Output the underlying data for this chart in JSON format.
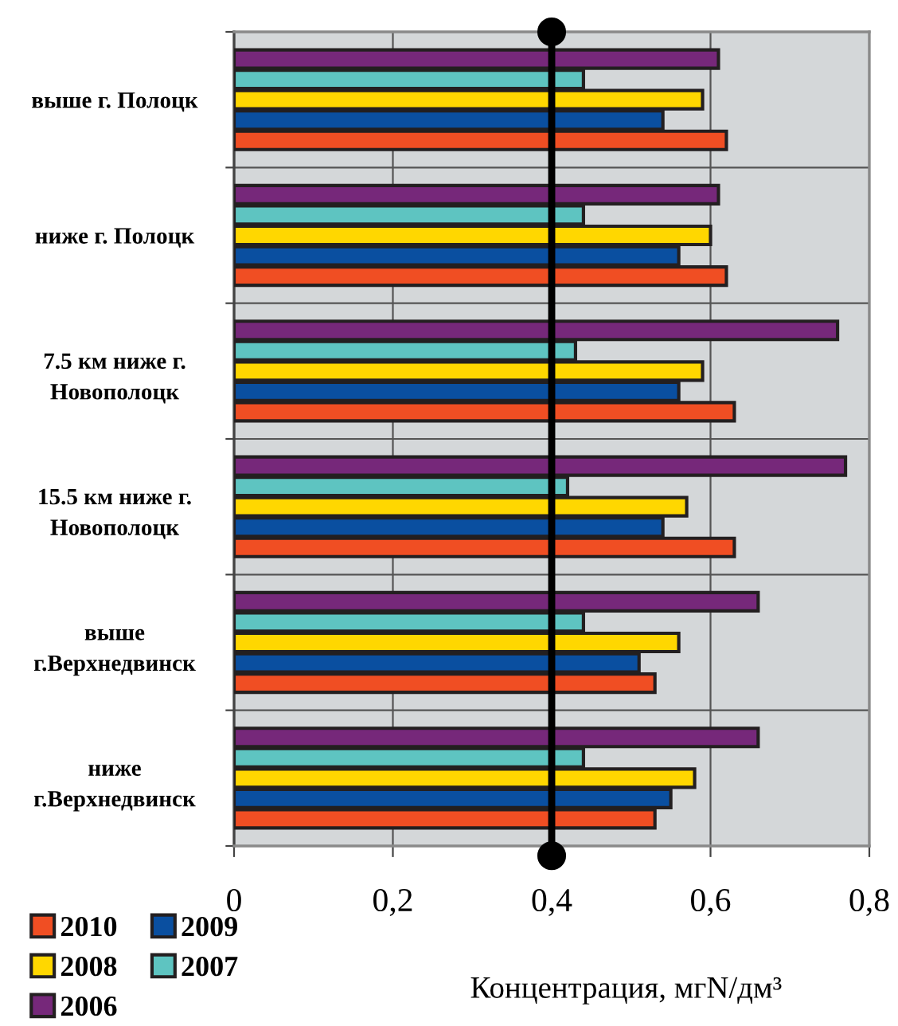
{
  "chart_data": {
    "type": "bar",
    "orientation": "horizontal",
    "categories": [
      "выше г. Полоцк",
      "ниже г. Полоцк",
      "7.5 км ниже г.\nНовополоцк",
      "15.5 км ниже г.\nНовополоцк",
      "выше\nг.Верхнедвинск",
      "ниже\nг.Верхнедвинск"
    ],
    "series": [
      {
        "name": "2010",
        "color": "#f04e23",
        "values": [
          0.62,
          0.62,
          0.63,
          0.63,
          0.53,
          0.53
        ]
      },
      {
        "name": "2009",
        "color": "#0a4fa0",
        "values": [
          0.54,
          0.56,
          0.56,
          0.54,
          0.51,
          0.55
        ]
      },
      {
        "name": "2008",
        "color": "#ffd700",
        "values": [
          0.59,
          0.6,
          0.59,
          0.57,
          0.56,
          0.58
        ]
      },
      {
        "name": "2007",
        "color": "#5ec4c1",
        "values": [
          0.44,
          0.44,
          0.43,
          0.42,
          0.44,
          0.44
        ]
      },
      {
        "name": "2006",
        "color": "#76287a",
        "values": [
          0.61,
          0.61,
          0.76,
          0.77,
          0.66,
          0.66
        ]
      }
    ],
    "xlabel": "Концентрация, мгN/дм³",
    "xlim": [
      0,
      0.8
    ],
    "xticks": [
      0,
      {
        "value": 0.2,
        "label": "0,2"
      },
      {
        "value": 0.4,
        "label": "0,4"
      },
      {
        "value": 0.6,
        "label": "0,6"
      },
      {
        "value": 0.8,
        "label": "0,8"
      }
    ],
    "ref_lines": [
      {
        "axis": "x",
        "value": 0.4,
        "color": "#000000"
      }
    ],
    "grid": true,
    "legend": "bottom left"
  }
}
